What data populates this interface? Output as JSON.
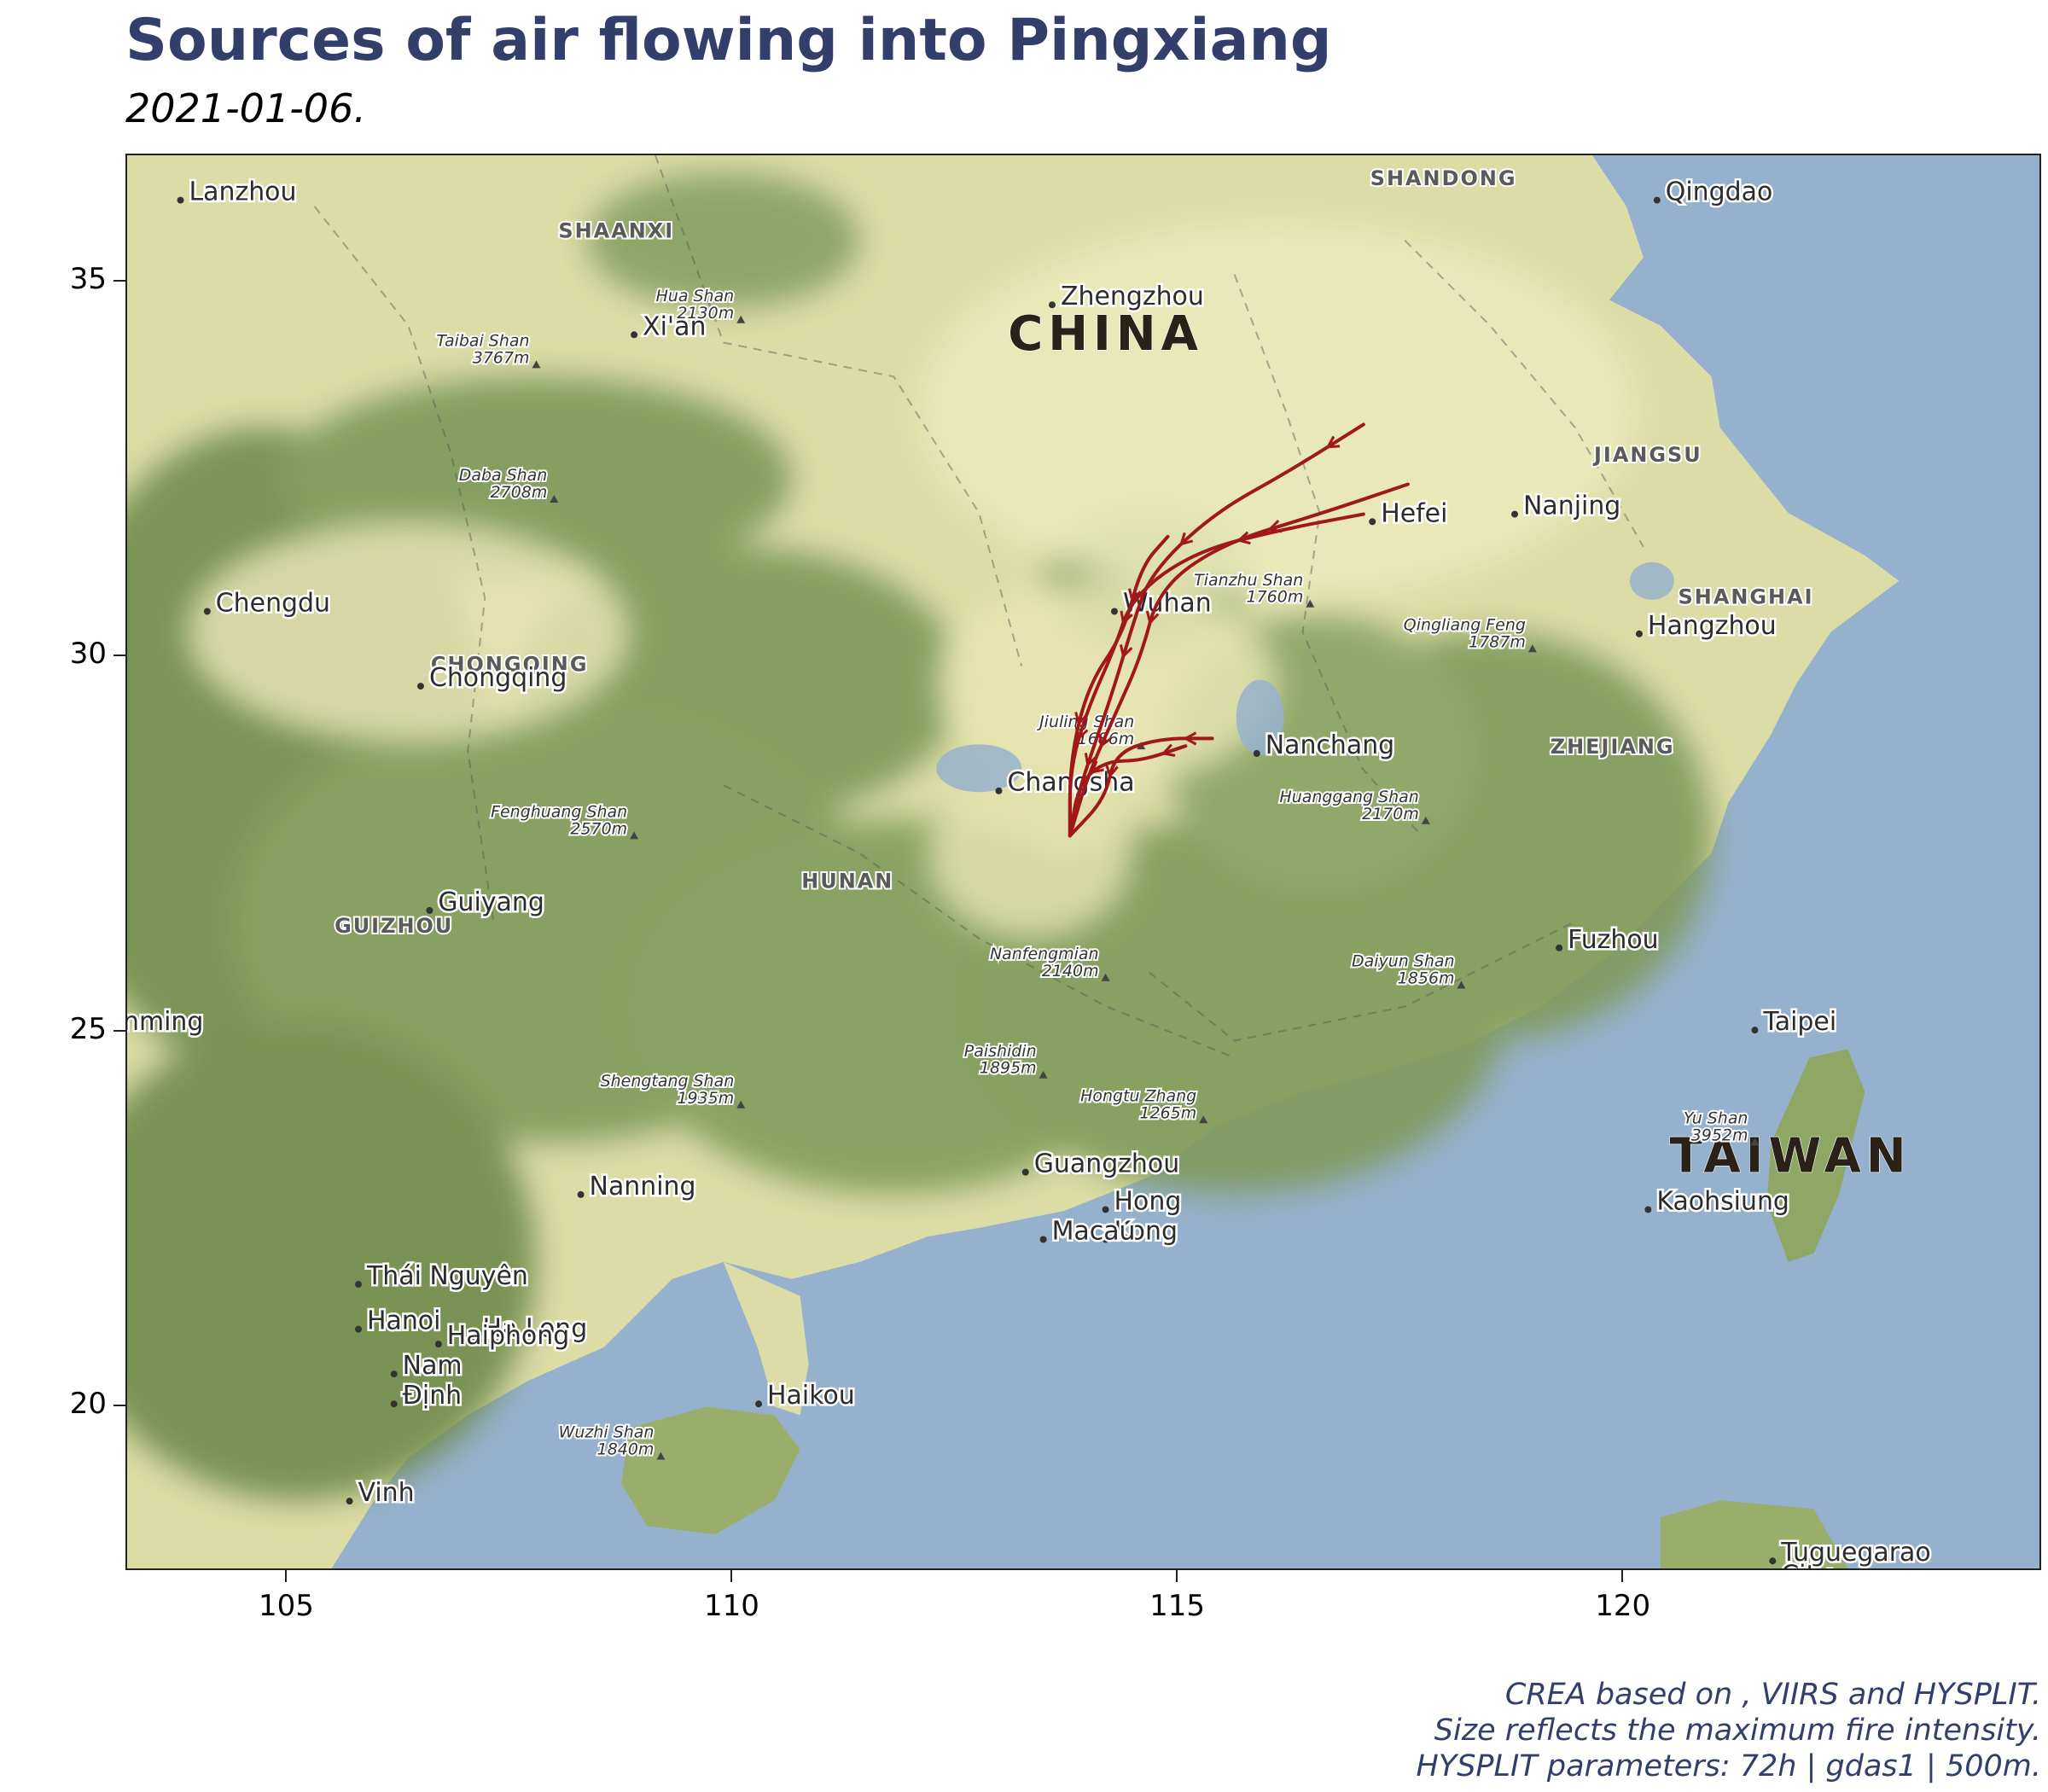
{
  "title": "Sources of air flowing into Pingxiang",
  "subtitle": "2021-01-06.",
  "caption": [
    "CREA based on , VIIRS and HYSPLIT.",
    "Size reflects the maximum fire intensity.",
    "HYSPLIT parameters: 72h | gdas1 | 500m."
  ],
  "map": {
    "xlim": [
      103.2,
      124.7
    ],
    "ylim": [
      17.8,
      36.7
    ],
    "x_ticks": [
      105,
      110,
      115,
      120
    ],
    "y_ticks": [
      20,
      25,
      30,
      35
    ],
    "colors": {
      "sea": "#96b1cd",
      "lowland": "#e8e6b4",
      "forest": "#7f9a5a",
      "trajectory": "#a01818"
    },
    "country_labels": [
      {
        "text": "CHINA",
        "lon": 114.2,
        "lat": 34.1
      },
      {
        "text": "TAIWAN",
        "lon": 121.9,
        "lat": 23.1
      }
    ],
    "province_labels": [
      {
        "text": "SHANDONG",
        "lon": 118.0,
        "lat": 36.3
      },
      {
        "text": "SHAANXI",
        "lon": 108.7,
        "lat": 35.6
      },
      {
        "text": "JIANGSU",
        "lon": 120.3,
        "lat": 32.6
      },
      {
        "text": "SHANGHAI",
        "lon": 121.4,
        "lat": 30.7
      },
      {
        "text": "ZHEJIANG",
        "lon": 119.9,
        "lat": 28.7
      },
      {
        "text": "CHONGQING",
        "lon": 107.5,
        "lat": 29.8
      },
      {
        "text": "HUNAN",
        "lon": 111.3,
        "lat": 26.9
      },
      {
        "text": "GUIZHOU",
        "lon": 106.2,
        "lat": 26.3
      }
    ],
    "cities": [
      {
        "text": "Lanzhou",
        "lon": 103.8,
        "lat": 36.1
      },
      {
        "text": "Qingdao",
        "lon": 120.4,
        "lat": 36.1
      },
      {
        "text": "Zhengzhou",
        "lon": 113.6,
        "lat": 34.7
      },
      {
        "text": "Xi'an",
        "lon": 108.9,
        "lat": 34.3
      },
      {
        "text": "Nanjing",
        "lon": 118.8,
        "lat": 31.9
      },
      {
        "text": "Hefei",
        "lon": 117.2,
        "lat": 31.8
      },
      {
        "text": "Wuhan",
        "lon": 114.3,
        "lat": 30.6
      },
      {
        "text": "Chengdu",
        "lon": 104.1,
        "lat": 30.6
      },
      {
        "text": "Hangzhou",
        "lon": 120.2,
        "lat": 30.3
      },
      {
        "text": "Chongqing",
        "lon": 106.5,
        "lat": 29.6
      },
      {
        "text": "Nanchang",
        "lon": 115.9,
        "lat": 28.7
      },
      {
        "text": "Changsha",
        "lon": 113.0,
        "lat": 28.2
      },
      {
        "text": "Guiyang",
        "lon": 106.6,
        "lat": 26.6
      },
      {
        "text": "Fuzhou",
        "lon": 119.3,
        "lat": 26.1
      },
      {
        "text": "Kunming",
        "lon": 102.7,
        "lat": 25.0
      },
      {
        "text": "Taipei",
        "lon": 121.5,
        "lat": 25.0
      },
      {
        "text": "Guangzhou",
        "lon": 113.3,
        "lat": 23.1
      },
      {
        "text": "Hong",
        "lon": 114.2,
        "lat": 22.6
      },
      {
        "text": "Kong",
        "lon": 114.2,
        "lat": 22.2
      },
      {
        "text": "Macau",
        "lon": 113.5,
        "lat": 22.2
      },
      {
        "text": "Nanning",
        "lon": 108.3,
        "lat": 22.8
      },
      {
        "text": "Kaohsiung",
        "lon": 120.3,
        "lat": 22.6
      },
      {
        "text": "Thái Nguyên",
        "lon": 105.8,
        "lat": 21.6
      },
      {
        "text": "Hanoi",
        "lon": 105.8,
        "lat": 21.0
      },
      {
        "text": "Hạ Long",
        "lon": 107.1,
        "lat": 20.9
      },
      {
        "text": "Haiphong",
        "lon": 106.7,
        "lat": 20.8
      },
      {
        "text": "Nam",
        "lon": 106.2,
        "lat": 20.4
      },
      {
        "text": "Định",
        "lon": 106.2,
        "lat": 20.0
      },
      {
        "text": "Haikou",
        "lon": 110.3,
        "lat": 20.0
      },
      {
        "text": "Vinh",
        "lon": 105.7,
        "lat": 18.7
      },
      {
        "text": "Tuguegarao",
        "lon": 121.7,
        "lat": 17.9
      },
      {
        "text": "City",
        "lon": 121.7,
        "lat": 17.6
      }
    ],
    "peaks": [
      {
        "name": "Hua Shan",
        "elev": "2130m",
        "lon": 110.1,
        "lat": 34.5
      },
      {
        "name": "Taibai Shan",
        "elev": "3767m",
        "lon": 107.8,
        "lat": 33.9
      },
      {
        "name": "Daba Shan",
        "elev": "2708m",
        "lon": 108.0,
        "lat": 32.1
      },
      {
        "name": "Tianzhu Shan",
        "elev": "1760m",
        "lon": 116.5,
        "lat": 30.7
      },
      {
        "name": "Qingliang Feng",
        "elev": "1787m",
        "lon": 119.0,
        "lat": 30.1
      },
      {
        "name": "Jiuling Shan",
        "elev": "1686m",
        "lon": 114.6,
        "lat": 28.8
      },
      {
        "name": "Fenghuang Shan",
        "elev": "2570m",
        "lon": 108.9,
        "lat": 27.6
      },
      {
        "name": "Huanggang Shan",
        "elev": "2170m",
        "lon": 117.8,
        "lat": 27.8
      },
      {
        "name": "Nanfengmian",
        "elev": "2140m",
        "lon": 114.2,
        "lat": 25.7
      },
      {
        "name": "Daiyun Shan",
        "elev": "1856m",
        "lon": 118.2,
        "lat": 25.6
      },
      {
        "name": "Paishidin",
        "elev": "1895m",
        "lon": 113.5,
        "lat": 24.4
      },
      {
        "name": "Shengtang Shan",
        "elev": "1935m",
        "lon": 110.1,
        "lat": 24.0
      },
      {
        "name": "Hongtu Zhang",
        "elev": "1265m",
        "lon": 115.3,
        "lat": 23.8
      },
      {
        "name": "Yu Shan",
        "elev": "3952m",
        "lon": 121.5,
        "lat": 23.5
      },
      {
        "name": "Wuzhi Shan",
        "elev": "1840m",
        "lon": 109.2,
        "lat": 19.3
      }
    ],
    "trajectories": [
      [
        [
          113.8,
          27.6
        ],
        [
          113.9,
          28.2
        ],
        [
          114.1,
          28.9
        ],
        [
          114.3,
          29.6
        ],
        [
          114.5,
          30.4
        ],
        [
          114.7,
          31.1
        ],
        [
          115.4,
          31.9
        ],
        [
          116.3,
          32.5
        ],
        [
          117.1,
          33.1
        ]
      ],
      [
        [
          113.8,
          27.6
        ],
        [
          114.0,
          28.4
        ],
        [
          114.3,
          29.2
        ],
        [
          114.6,
          30.0
        ],
        [
          114.8,
          30.9
        ],
        [
          115.5,
          31.5
        ],
        [
          116.6,
          31.9
        ],
        [
          117.6,
          32.3
        ]
      ],
      [
        [
          113.8,
          27.6
        ],
        [
          113.8,
          28.5
        ],
        [
          114.0,
          29.3
        ],
        [
          114.3,
          30.1
        ],
        [
          114.5,
          30.8
        ],
        [
          115.2,
          31.4
        ],
        [
          116.2,
          31.7
        ],
        [
          117.1,
          31.9
        ]
      ],
      [
        [
          113.8,
          27.6
        ],
        [
          114.2,
          28.1
        ],
        [
          114.3,
          28.7
        ],
        [
          114.8,
          28.9
        ],
        [
          115.4,
          28.9
        ]
      ],
      [
        [
          113.8,
          27.6
        ],
        [
          113.9,
          28.3
        ],
        [
          114.2,
          28.6
        ],
        [
          114.6,
          28.6
        ],
        [
          115.1,
          28.8
        ]
      ],
      [
        [
          113.8,
          27.6
        ],
        [
          113.8,
          28.6
        ],
        [
          114.0,
          29.6
        ],
        [
          114.4,
          30.3
        ],
        [
          114.6,
          31.2
        ],
        [
          114.9,
          31.6
        ]
      ]
    ]
  }
}
